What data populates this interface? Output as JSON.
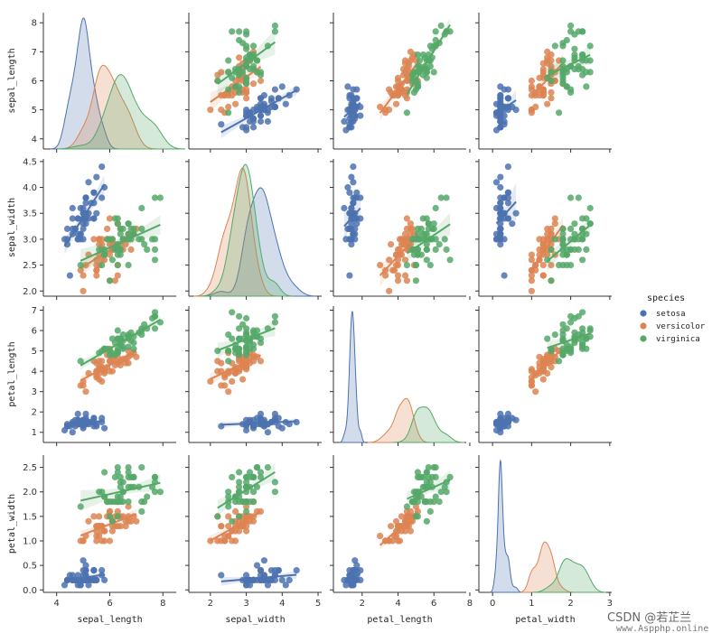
{
  "watermark": {
    "line1": "CSDN @若芷兰",
    "line2": "www.Aspphp.online"
  },
  "chart_data": {
    "type": "scatter",
    "subtype": "pairplot-regression-kde",
    "variables": [
      "sepal_length",
      "sepal_width",
      "petal_length",
      "petal_width"
    ],
    "axis_labels": [
      "sepal_length",
      "sepal_width",
      "petal_length",
      "petal_width"
    ],
    "x_ticks": [
      [
        4,
        6,
        8
      ],
      [
        2,
        3,
        4,
        5
      ],
      [
        2,
        4,
        6,
        8
      ],
      [
        0,
        1,
        2,
        3
      ]
    ],
    "y_ticks": [
      [
        4,
        5,
        6,
        7,
        8
      ],
      [
        2.0,
        2.5,
        3.0,
        3.5,
        4.0,
        4.5
      ],
      [
        1,
        2,
        3,
        4,
        5,
        6,
        7
      ],
      [
        0.0,
        0.5,
        1.0,
        1.5,
        2.0,
        2.5
      ]
    ],
    "y_tick_labels": [
      [
        "4",
        "5",
        "6",
        "7",
        "8"
      ],
      [
        "2.0",
        "2.5",
        "3.0",
        "3.5",
        "4.0",
        "4.5"
      ],
      [
        "1",
        "2",
        "3",
        "4",
        "5",
        "6",
        "7"
      ],
      [
        "0.0",
        "0.5",
        "1.0",
        "1.5",
        "2.0",
        "2.5"
      ]
    ],
    "x_tick_labels": [
      [
        "4",
        "6",
        "8"
      ],
      [
        "2",
        "3",
        "4",
        "5"
      ],
      [
        "2",
        "4",
        "6",
        "8"
      ],
      [
        "0",
        "1",
        "2",
        "3"
      ]
    ],
    "legend": {
      "title": "species",
      "position": "right"
    },
    "grid": false,
    "series": [
      {
        "name": "setosa",
        "color": "#4c72b0",
        "points": [
          [
            5.1,
            3.5,
            1.4,
            0.2
          ],
          [
            4.9,
            3.0,
            1.4,
            0.2
          ],
          [
            4.7,
            3.2,
            1.3,
            0.2
          ],
          [
            4.6,
            3.1,
            1.5,
            0.2
          ],
          [
            5.0,
            3.6,
            1.4,
            0.2
          ],
          [
            5.4,
            3.9,
            1.7,
            0.4
          ],
          [
            4.6,
            3.4,
            1.4,
            0.3
          ],
          [
            5.0,
            3.4,
            1.5,
            0.2
          ],
          [
            4.4,
            2.9,
            1.4,
            0.2
          ],
          [
            4.9,
            3.1,
            1.5,
            0.1
          ],
          [
            5.4,
            3.7,
            1.5,
            0.2
          ],
          [
            4.8,
            3.4,
            1.6,
            0.2
          ],
          [
            4.8,
            3.0,
            1.4,
            0.1
          ],
          [
            4.3,
            3.0,
            1.1,
            0.1
          ],
          [
            5.8,
            4.0,
            1.2,
            0.2
          ],
          [
            5.7,
            4.4,
            1.5,
            0.4
          ],
          [
            5.4,
            3.9,
            1.3,
            0.4
          ],
          [
            5.1,
            3.5,
            1.4,
            0.3
          ],
          [
            5.7,
            3.8,
            1.7,
            0.3
          ],
          [
            5.1,
            3.8,
            1.5,
            0.3
          ],
          [
            5.4,
            3.4,
            1.7,
            0.2
          ],
          [
            5.1,
            3.7,
            1.5,
            0.4
          ],
          [
            4.6,
            3.6,
            1.0,
            0.2
          ],
          [
            5.1,
            3.3,
            1.7,
            0.5
          ],
          [
            4.8,
            3.4,
            1.9,
            0.2
          ],
          [
            5.0,
            3.0,
            1.6,
            0.2
          ],
          [
            5.0,
            3.4,
            1.6,
            0.4
          ],
          [
            5.2,
            3.5,
            1.5,
            0.2
          ],
          [
            5.2,
            3.4,
            1.4,
            0.2
          ],
          [
            4.7,
            3.2,
            1.6,
            0.2
          ],
          [
            4.8,
            3.1,
            1.6,
            0.2
          ],
          [
            5.4,
            3.4,
            1.5,
            0.4
          ],
          [
            5.2,
            4.1,
            1.5,
            0.1
          ],
          [
            5.5,
            4.2,
            1.4,
            0.2
          ],
          [
            4.9,
            3.1,
            1.5,
            0.2
          ],
          [
            5.0,
            3.2,
            1.2,
            0.2
          ],
          [
            5.5,
            3.5,
            1.3,
            0.2
          ],
          [
            4.9,
            3.6,
            1.4,
            0.1
          ],
          [
            4.4,
            3.0,
            1.3,
            0.2
          ],
          [
            5.1,
            3.4,
            1.5,
            0.2
          ],
          [
            5.0,
            3.5,
            1.3,
            0.3
          ],
          [
            4.5,
            2.3,
            1.3,
            0.3
          ],
          [
            4.4,
            3.2,
            1.3,
            0.2
          ],
          [
            5.0,
            3.5,
            1.6,
            0.6
          ],
          [
            5.1,
            3.8,
            1.9,
            0.4
          ],
          [
            4.8,
            3.0,
            1.4,
            0.3
          ],
          [
            5.1,
            3.8,
            1.6,
            0.2
          ],
          [
            4.6,
            3.2,
            1.4,
            0.2
          ],
          [
            5.3,
            3.7,
            1.5,
            0.2
          ],
          [
            5.0,
            3.3,
            1.4,
            0.2
          ]
        ]
      },
      {
        "name": "versicolor",
        "color": "#dd8452",
        "points": [
          [
            7.0,
            3.2,
            4.7,
            1.4
          ],
          [
            6.4,
            3.2,
            4.5,
            1.5
          ],
          [
            6.9,
            3.1,
            4.9,
            1.5
          ],
          [
            5.5,
            2.3,
            4.0,
            1.3
          ],
          [
            6.5,
            2.8,
            4.6,
            1.5
          ],
          [
            5.7,
            2.8,
            4.5,
            1.3
          ],
          [
            6.3,
            3.3,
            4.7,
            1.6
          ],
          [
            4.9,
            2.4,
            3.3,
            1.0
          ],
          [
            6.6,
            2.9,
            4.6,
            1.3
          ],
          [
            5.2,
            2.7,
            3.9,
            1.4
          ],
          [
            5.0,
            2.0,
            3.5,
            1.0
          ],
          [
            5.9,
            3.0,
            4.2,
            1.5
          ],
          [
            6.0,
            2.2,
            4.0,
            1.0
          ],
          [
            6.1,
            2.9,
            4.7,
            1.4
          ],
          [
            5.6,
            2.9,
            3.6,
            1.3
          ],
          [
            6.7,
            3.1,
            4.4,
            1.4
          ],
          [
            5.6,
            3.0,
            4.5,
            1.5
          ],
          [
            5.8,
            2.7,
            4.1,
            1.0
          ],
          [
            6.2,
            2.2,
            4.5,
            1.5
          ],
          [
            5.6,
            2.5,
            3.9,
            1.1
          ],
          [
            5.9,
            3.2,
            4.8,
            1.8
          ],
          [
            6.1,
            2.8,
            4.0,
            1.3
          ],
          [
            6.3,
            2.5,
            4.9,
            1.5
          ],
          [
            6.1,
            2.8,
            4.7,
            1.2
          ],
          [
            6.4,
            2.9,
            4.3,
            1.3
          ],
          [
            6.6,
            3.0,
            4.4,
            1.4
          ],
          [
            6.8,
            2.8,
            4.8,
            1.4
          ],
          [
            6.7,
            3.0,
            5.0,
            1.7
          ],
          [
            6.0,
            2.9,
            4.5,
            1.5
          ],
          [
            5.7,
            2.6,
            3.5,
            1.0
          ],
          [
            5.5,
            2.4,
            3.8,
            1.1
          ],
          [
            5.5,
            2.4,
            3.7,
            1.0
          ],
          [
            5.8,
            2.7,
            3.9,
            1.2
          ],
          [
            6.0,
            2.7,
            5.1,
            1.6
          ],
          [
            5.4,
            3.0,
            4.5,
            1.5
          ],
          [
            6.0,
            3.4,
            4.5,
            1.6
          ],
          [
            6.7,
            3.1,
            4.7,
            1.5
          ],
          [
            6.3,
            2.3,
            4.4,
            1.3
          ],
          [
            5.6,
            3.0,
            4.1,
            1.3
          ],
          [
            5.5,
            2.5,
            4.0,
            1.3
          ],
          [
            5.5,
            2.6,
            4.4,
            1.2
          ],
          [
            6.1,
            3.0,
            4.6,
            1.4
          ],
          [
            5.8,
            2.6,
            4.0,
            1.2
          ],
          [
            5.0,
            2.3,
            3.3,
            1.0
          ],
          [
            5.6,
            2.7,
            4.2,
            1.3
          ],
          [
            5.7,
            3.0,
            4.2,
            1.2
          ],
          [
            5.7,
            2.9,
            4.2,
            1.3
          ],
          [
            6.2,
            2.9,
            4.3,
            1.3
          ],
          [
            5.1,
            2.5,
            3.0,
            1.1
          ],
          [
            5.7,
            2.8,
            4.1,
            1.3
          ]
        ]
      },
      {
        "name": "virginica",
        "color": "#55a868",
        "points": [
          [
            6.3,
            3.3,
            6.0,
            2.5
          ],
          [
            5.8,
            2.7,
            5.1,
            1.9
          ],
          [
            7.1,
            3.0,
            5.9,
            2.1
          ],
          [
            6.3,
            2.9,
            5.6,
            1.8
          ],
          [
            6.5,
            3.0,
            5.8,
            2.2
          ],
          [
            7.6,
            3.0,
            6.6,
            2.1
          ],
          [
            4.9,
            2.5,
            4.5,
            1.7
          ],
          [
            7.3,
            2.9,
            6.3,
            1.8
          ],
          [
            6.7,
            2.5,
            5.8,
            1.8
          ],
          [
            7.2,
            3.6,
            6.1,
            2.5
          ],
          [
            6.5,
            3.2,
            5.1,
            2.0
          ],
          [
            6.4,
            2.7,
            5.3,
            1.9
          ],
          [
            6.8,
            3.0,
            5.5,
            2.1
          ],
          [
            5.7,
            2.5,
            5.0,
            2.0
          ],
          [
            5.8,
            2.8,
            5.1,
            2.4
          ],
          [
            6.4,
            3.2,
            5.3,
            2.3
          ],
          [
            6.5,
            3.0,
            5.5,
            1.8
          ],
          [
            7.7,
            3.8,
            6.7,
            2.2
          ],
          [
            7.7,
            2.6,
            6.9,
            2.3
          ],
          [
            6.0,
            2.2,
            5.0,
            1.5
          ],
          [
            6.9,
            3.2,
            5.7,
            2.3
          ],
          [
            5.6,
            2.8,
            4.9,
            2.0
          ],
          [
            7.7,
            2.8,
            6.7,
            2.0
          ],
          [
            6.3,
            2.7,
            4.9,
            1.8
          ],
          [
            6.7,
            3.3,
            5.7,
            2.1
          ],
          [
            7.2,
            3.2,
            6.0,
            1.8
          ],
          [
            6.2,
            2.8,
            4.8,
            1.8
          ],
          [
            6.1,
            3.0,
            4.9,
            1.8
          ],
          [
            6.4,
            2.8,
            5.6,
            2.1
          ],
          [
            7.2,
            3.0,
            5.8,
            1.6
          ],
          [
            7.4,
            2.8,
            6.1,
            1.9
          ],
          [
            7.9,
            3.8,
            6.4,
            2.0
          ],
          [
            6.4,
            2.8,
            5.6,
            2.2
          ],
          [
            6.3,
            2.8,
            5.1,
            1.5
          ],
          [
            6.1,
            2.6,
            5.6,
            1.4
          ],
          [
            7.7,
            3.0,
            6.1,
            2.3
          ],
          [
            6.3,
            3.4,
            5.6,
            2.4
          ],
          [
            6.4,
            3.1,
            5.5,
            1.8
          ],
          [
            6.0,
            3.0,
            4.8,
            1.8
          ],
          [
            6.9,
            3.1,
            5.4,
            2.1
          ],
          [
            6.7,
            3.1,
            5.6,
            2.4
          ],
          [
            6.9,
            3.1,
            5.1,
            2.3
          ],
          [
            5.8,
            2.7,
            5.1,
            1.9
          ],
          [
            6.8,
            3.2,
            5.9,
            2.3
          ],
          [
            6.7,
            3.3,
            5.7,
            2.5
          ],
          [
            6.7,
            3.0,
            5.2,
            2.3
          ],
          [
            6.3,
            2.5,
            5.0,
            1.9
          ],
          [
            6.5,
            3.0,
            5.2,
            2.0
          ],
          [
            6.2,
            3.4,
            5.4,
            2.3
          ],
          [
            5.9,
            3.0,
            5.1,
            1.8
          ]
        ]
      }
    ]
  }
}
